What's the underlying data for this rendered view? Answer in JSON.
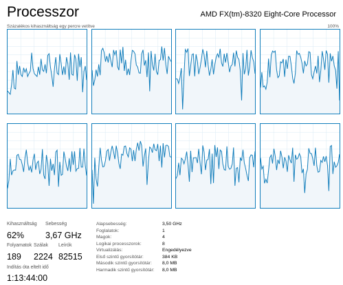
{
  "header": {
    "title": "Processzor",
    "cpu_name": "AMD FX(tm)-8320 Eight-Core Processor"
  },
  "graph": {
    "caption": "Százalékos kihasználtság egy percre vetítve",
    "max_label": "100%",
    "line_color": "#117dbb",
    "fill_color": "#f1f6fa",
    "grid_color": "#d9eaf4"
  },
  "stats": {
    "utilization_label": "Kihasználtság",
    "utilization_value": "62%",
    "speed_label": "Sebesség",
    "speed_value": "3,67 GHz",
    "processes_label": "Folyamatok",
    "processes_value": "189",
    "threads_label": "Szálak",
    "threads_value": "2224",
    "handles_label": "Leírók",
    "handles_value": "82515",
    "uptime_label": "Indítás óta eltelt idő",
    "uptime_value": "1:13:44:00"
  },
  "info": [
    {
      "key": "Alapsebesség:",
      "value": "3,50 GHz"
    },
    {
      "key": "Foglalatok:",
      "value": "1"
    },
    {
      "key": "Magok:",
      "value": "4"
    },
    {
      "key": "Logikai processzorok:",
      "value": "8"
    },
    {
      "key": "Virtualizálás:",
      "value": "Engedélyezve"
    },
    {
      "key": "Első szintű gyorsítótár:",
      "value": "384 KB"
    },
    {
      "key": "Második szintű gyorsítótár:",
      "value": "8,0 MB"
    },
    {
      "key": "Harmadik szintű gyorsítótár:",
      "value": "8,0 MB"
    }
  ]
}
